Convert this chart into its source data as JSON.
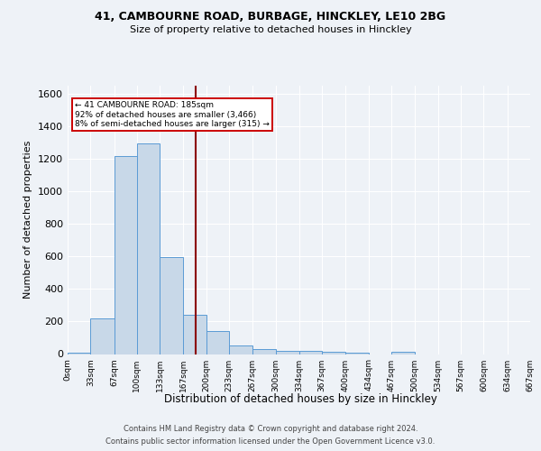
{
  "title1": "41, CAMBOURNE ROAD, BURBAGE, HINCKLEY, LE10 2BG",
  "title2": "Size of property relative to detached houses in Hinckley",
  "xlabel": "Distribution of detached houses by size in Hinckley",
  "ylabel": "Number of detached properties",
  "footer1": "Contains HM Land Registry data © Crown copyright and database right 2024.",
  "footer2": "Contains public sector information licensed under the Open Government Licence v3.0.",
  "bin_edges": [
    0,
    33,
    67,
    100,
    133,
    167,
    200,
    233,
    267,
    300,
    334,
    367,
    400,
    434,
    467,
    500,
    534,
    567,
    600,
    634,
    667
  ],
  "bar_heights": [
    10,
    220,
    1220,
    1295,
    595,
    240,
    140,
    50,
    30,
    22,
    22,
    13,
    10,
    0,
    12,
    0,
    0,
    0,
    0,
    0
  ],
  "bar_facecolor": "#c8d8e8",
  "bar_edgecolor": "#5b9bd5",
  "vline_x": 185,
  "vline_color": "#8b0000",
  "annotation_line1": "← 41 CAMBOURNE ROAD: 185sqm",
  "annotation_line2": "92% of detached houses are smaller (3,466)",
  "annotation_line3": "8% of semi-detached houses are larger (315) →",
  "annotation_box_edgecolor": "#cc0000",
  "annotation_box_facecolor": "#ffffff",
  "ylim": [
    0,
    1650
  ],
  "yticks": [
    0,
    200,
    400,
    600,
    800,
    1000,
    1200,
    1400,
    1600
  ],
  "bg_color": "#eef2f7",
  "plot_bg_color": "#eef2f7",
  "grid_color": "#ffffff",
  "tick_labels": [
    "0sqm",
    "33sqm",
    "67sqm",
    "100sqm",
    "133sqm",
    "167sqm",
    "200sqm",
    "233sqm",
    "267sqm",
    "300sqm",
    "334sqm",
    "367sqm",
    "400sqm",
    "434sqm",
    "467sqm",
    "500sqm",
    "534sqm",
    "567sqm",
    "600sqm",
    "634sqm",
    "667sqm"
  ]
}
